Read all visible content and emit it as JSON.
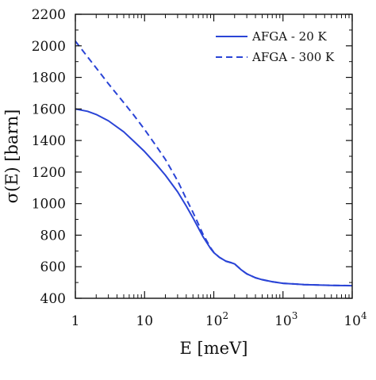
{
  "chart_data": {
    "type": "line",
    "title": "",
    "xlabel": "E [meV]",
    "ylabel": "σ(E) [barn]",
    "xscale": "log",
    "xlim": [
      1,
      10000
    ],
    "ylim": [
      400,
      2200
    ],
    "grid": false,
    "legend_position": "top-right",
    "x_ticks": [
      {
        "value": 1,
        "base": "1",
        "exp": ""
      },
      {
        "value": 10,
        "base": "10",
        "exp": ""
      },
      {
        "value": 100,
        "base": "10",
        "exp": "2"
      },
      {
        "value": 1000,
        "base": "10",
        "exp": "3"
      },
      {
        "value": 10000,
        "base": "10",
        "exp": "4"
      }
    ],
    "y_ticks": [
      400,
      600,
      800,
      1000,
      1200,
      1400,
      1600,
      1800,
      2000,
      2200
    ],
    "series": [
      {
        "name": "AFGA - 20 K",
        "style": "solid",
        "color": "#2a44d6",
        "x": [
          1,
          1.5,
          2,
          3,
          5,
          7,
          10,
          15,
          20,
          30,
          40,
          50,
          60,
          70,
          80,
          90,
          100,
          120,
          150,
          180,
          200,
          250,
          300,
          400,
          500,
          700,
          1000,
          2000,
          5000,
          10000
        ],
        "y": [
          1600,
          1585,
          1565,
          1525,
          1455,
          1395,
          1330,
          1245,
          1180,
          1075,
          985,
          910,
          845,
          790,
          750,
          715,
          690,
          660,
          635,
          625,
          618,
          580,
          555,
          530,
          518,
          505,
          495,
          487,
          482,
          480
        ]
      },
      {
        "name": "AFGA - 300 K",
        "style": "dashed",
        "color": "#2a44d6",
        "x": [
          1,
          1.5,
          2,
          3,
          5,
          7,
          10,
          15,
          20,
          30,
          40,
          50,
          60,
          70,
          80,
          90,
          100,
          120,
          150,
          180,
          200,
          250,
          300,
          400,
          500,
          700,
          1000,
          2000,
          5000,
          10000
        ],
        "y": [
          2030,
          1930,
          1860,
          1760,
          1640,
          1560,
          1470,
          1360,
          1280,
          1145,
          1030,
          945,
          870,
          805,
          760,
          720,
          692,
          660,
          635,
          625,
          618,
          580,
          555,
          530,
          518,
          505,
          495,
          487,
          482,
          480
        ]
      }
    ]
  }
}
